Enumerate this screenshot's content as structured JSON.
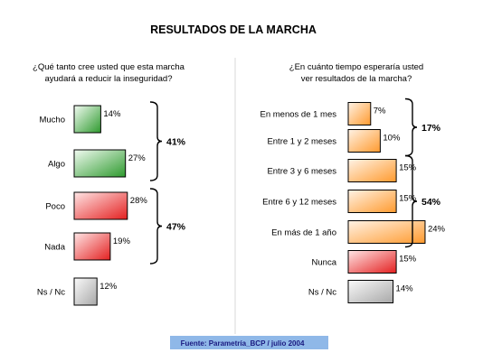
{
  "title": "RESULTADOS DE LA MARCHA",
  "source": "Fuente: Parametría_BCP / julio 2004",
  "chart_data": [
    {
      "type": "bar",
      "orientation": "horizontal",
      "question_lines": [
        "¿Qué tanto cree usted que esta marcha",
        "ayudará a reducir la inseguridad?"
      ],
      "categories": [
        "Mucho",
        "Algo",
        "Poco",
        "Nada",
        "Ns / Nc"
      ],
      "values": [
        14,
        27,
        28,
        19,
        12
      ],
      "value_labels": [
        "14%",
        "27%",
        "28%",
        "19%",
        "12%"
      ],
      "bar_colors": [
        "green",
        "green",
        "red",
        "red",
        "gray"
      ],
      "groups": [
        {
          "label": "41%",
          "from": 0,
          "to": 1
        },
        {
          "label": "47%",
          "from": 2,
          "to": 3
        }
      ]
    },
    {
      "type": "bar",
      "orientation": "horizontal",
      "question_lines": [
        "¿En cuánto tiempo esperaría usted",
        "ver resultados de la marcha?"
      ],
      "categories": [
        "En menos de 1 mes",
        "Entre 1 y 2 meses",
        "Entre 3 y 6 meses",
        "Entre 6 y 12 meses",
        "En más de 1 año",
        "Nunca",
        "Ns / Nc"
      ],
      "values": [
        7,
        10,
        15,
        15,
        24,
        15,
        14
      ],
      "value_labels": [
        "7%",
        "10%",
        "15%",
        "15%",
        "24%",
        "15%",
        "14%"
      ],
      "bar_colors": [
        "orange",
        "orange",
        "orange",
        "orange",
        "orange",
        "red",
        "gray"
      ],
      "groups": [
        {
          "label": "17%",
          "from": 0,
          "to": 1
        },
        {
          "label": "54%",
          "from": 2,
          "to": 4
        }
      ]
    }
  ],
  "colors": {
    "green": [
      "#f2fbf2",
      "#2e9a2e"
    ],
    "red": [
      "#ffe6e6",
      "#e42020"
    ],
    "gray": [
      "#fafafa",
      "#a8a8a8"
    ],
    "orange": [
      "#fff3e6",
      "#ff9a2e"
    ],
    "source_band": "#8fb8e8",
    "source_text": "#1a1a80"
  }
}
